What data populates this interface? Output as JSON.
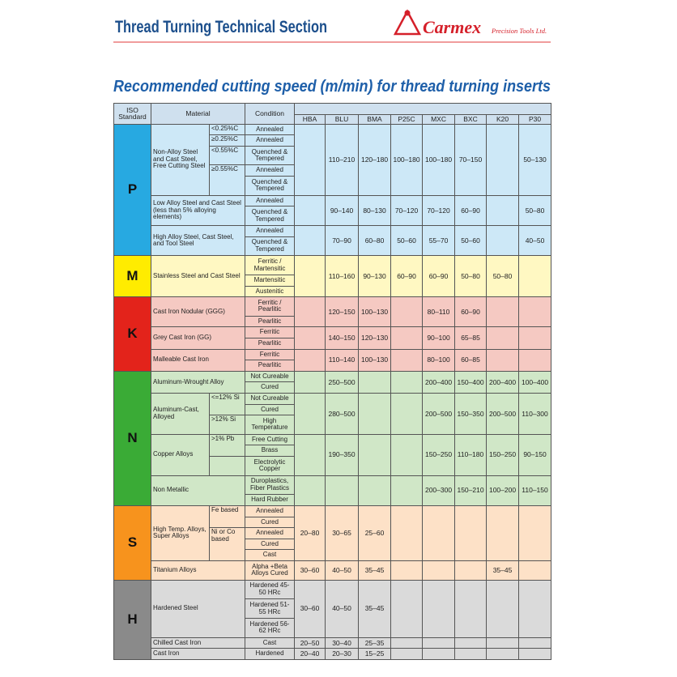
{
  "header": {
    "section_title": "Thread Turning Technical Section",
    "brand": "Carmex",
    "brand_tagline": "Precision Tools Ltd."
  },
  "title": "Recommended cutting speed (m/min) for thread turning inserts",
  "table": {
    "columns": {
      "iso": "ISO Standard",
      "material": "Material",
      "condition": "Condition",
      "grades": [
        "HBA",
        "BLU",
        "BMA",
        "P25C",
        "MXC",
        "BXC",
        "K20",
        "P30"
      ]
    },
    "groups": [
      {
        "iso": "P",
        "materials": [
          {
            "name": "Non-Alloy Steel and Cast Steel, Free Cutting Steel",
            "subs": [
              {
                "label": "<0.25%C",
                "conditions": [
                  "Annealed"
                ]
              },
              {
                "label": "≥0.25%C",
                "conditions": [
                  "Annealed"
                ]
              },
              {
                "label": "<0.55%C",
                "conditions": [
                  "Quenched & Tempered"
                ]
              },
              {
                "label": "≥0.55%C",
                "conditions": [
                  "Annealed",
                  "Quenched & Tempered"
                ]
              }
            ],
            "speeds": [
              null,
              "110–210",
              "120–180",
              "100–180",
              "100–180",
              "70–150",
              null,
              "50–130"
            ]
          },
          {
            "name": "Low Alloy Steel and Cast Steel (less than 5% alloying elements)",
            "conditions": [
              "Annealed",
              "Quenched & Tempered"
            ],
            "speeds": [
              null,
              "90–140",
              "80–130",
              "70–120",
              "70–120",
              "60–90",
              null,
              "50–80"
            ]
          },
          {
            "name": "High Alloy Steel, Cast Steel, and Tool Steel",
            "conditions": [
              "Annealed",
              "Quenched & Tempered"
            ],
            "speeds": [
              null,
              "70–90",
              "60–80",
              "50–60",
              "55–70",
              "50–60",
              null,
              "40–50"
            ]
          }
        ]
      },
      {
        "iso": "M",
        "materials": [
          {
            "name": "Stainless Steel and Cast Steel",
            "conditions": [
              "Ferritic / Martensitic",
              "Martensitic",
              "Austenitic"
            ],
            "speeds": [
              null,
              "110–160",
              "90–130",
              "60–90",
              "60–90",
              "50–80",
              "50–80",
              null
            ]
          }
        ]
      },
      {
        "iso": "K",
        "materials": [
          {
            "name": "Cast Iron Nodular (GGG)",
            "conditions": [
              "Ferritic / Pearlitic",
              "Pearlitic"
            ],
            "speeds": [
              null,
              "120–150",
              "100–130",
              null,
              "80–110",
              "60–90",
              null,
              null
            ]
          },
          {
            "name": "Grey Cast Iron (GG)",
            "conditions": [
              "Ferritic",
              "Pearlitic"
            ],
            "speeds": [
              null,
              "140–150",
              "120–130",
              null,
              "90–100",
              "65–85",
              null,
              null
            ]
          },
          {
            "name": "Malleable Cast Iron",
            "conditions": [
              "Ferritic",
              "Pearlitic"
            ],
            "speeds": [
              null,
              "110–140",
              "100–130",
              null,
              "80–100",
              "60–85",
              null,
              null
            ]
          }
        ]
      },
      {
        "iso": "N",
        "materials": [
          {
            "name": "Aluminum-Wrought Alloy",
            "conditions": [
              "Not Cureable",
              "Cured"
            ],
            "speeds": [
              null,
              "250–500",
              null,
              null,
              "200–400",
              "150–400",
              "200–400",
              "100–400"
            ]
          },
          {
            "name": "Aluminum-Cast, Alloyed",
            "subs": [
              {
                "label": "<=12% Si",
                "conditions": [
                  "Not Cureable",
                  "Cured"
                ]
              },
              {
                "label": ">12% Si",
                "conditions": [
                  "High Temperature"
                ]
              }
            ],
            "speeds": [
              null,
              "280–500",
              null,
              null,
              "200–500",
              "150–350",
              "200–500",
              "110–300"
            ]
          },
          {
            "name": "Copper Alloys",
            "subs": [
              {
                "label": ">1% Pb",
                "conditions": [
                  "Free Cutting",
                  "Brass"
                ]
              },
              {
                "label": null,
                "conditions": [
                  "Electrolytic Copper"
                ]
              }
            ],
            "speeds": [
              null,
              "190–350",
              null,
              null,
              "150–250",
              "110–180",
              "150–250",
              "90–150"
            ]
          },
          {
            "name": "Non Metallic",
            "conditions": [
              "Duroplastics, Fiber Plastics",
              "Hard Rubber"
            ],
            "speeds": [
              null,
              null,
              null,
              null,
              "200–300",
              "150–210",
              "100–200",
              "110–150"
            ]
          }
        ]
      },
      {
        "iso": "S",
        "materials": [
          {
            "name": "High Temp. Alloys, Super Alloys",
            "subs": [
              {
                "label": "Fe based",
                "conditions": [
                  "Annealed",
                  "Cured"
                ]
              },
              {
                "label": "Ni or Co based",
                "conditions": [
                  "Annealed",
                  "Cured",
                  "Cast"
                ]
              }
            ],
            "speeds": [
              "20–80",
              "30–65",
              "25–60",
              null,
              null,
              null,
              null,
              null
            ]
          },
          {
            "name": "Titanium Alloys",
            "conditions": [
              "Alpha +Beta Alloys Cured"
            ],
            "speeds": [
              "30–60",
              "40–50",
              "35–45",
              null,
              null,
              null,
              "35–45",
              null
            ]
          }
        ]
      },
      {
        "iso": "H",
        "materials": [
          {
            "name": "Hardened Steel",
            "conditions": [
              "Hardened 45-50 HRc",
              "Hardened 51-55 HRc",
              "Hardened 56-62 HRc"
            ],
            "speeds": [
              "30–60",
              "40–50",
              "35–45",
              null,
              null,
              null,
              null,
              null
            ]
          },
          {
            "name": "Chilled Cast Iron",
            "conditions": [
              "Cast"
            ],
            "speeds": [
              "20–50",
              "30–40",
              "25–35",
              null,
              null,
              null,
              null,
              null
            ]
          },
          {
            "name": "Cast Iron",
            "conditions": [
              "Hardened"
            ],
            "speeds": [
              "20–40",
              "20–30",
              "15–25",
              null,
              null,
              null,
              null,
              null
            ]
          }
        ]
      }
    ]
  }
}
